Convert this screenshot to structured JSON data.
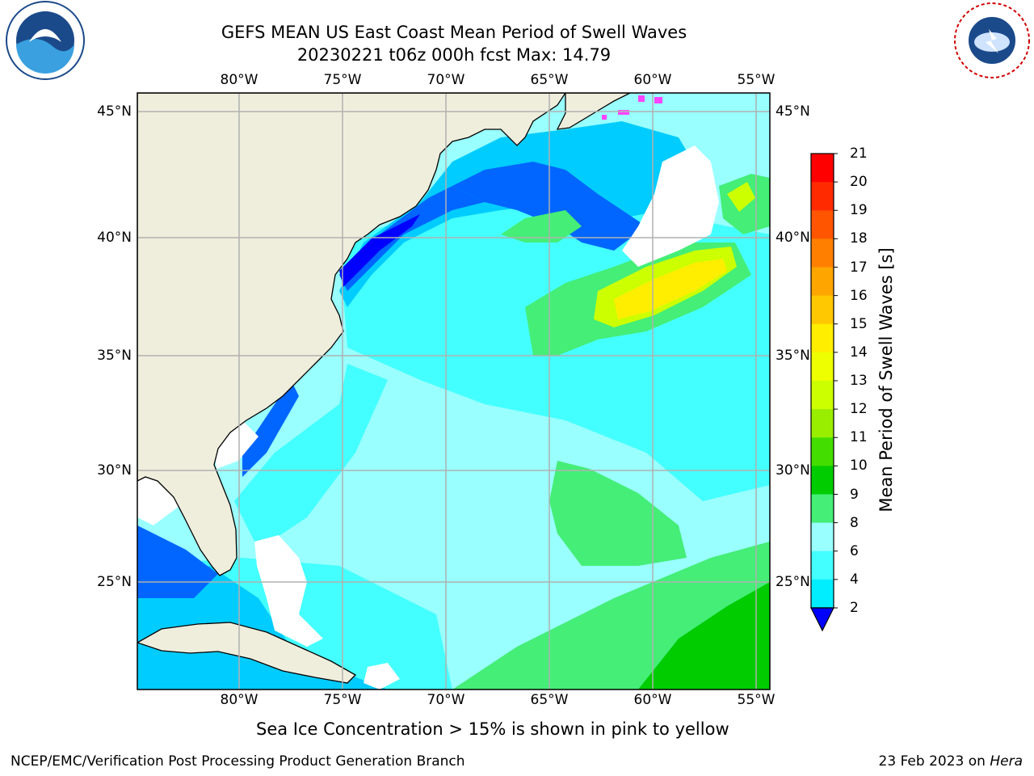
{
  "title": {
    "line1": "GEFS MEAN US East Coast Mean Period of Swell Waves",
    "line2": "20230221 t06z 000h fcst   Max: 14.79"
  },
  "logos": {
    "left": {
      "name": "noaa-logo",
      "text": "NOAA"
    },
    "right": {
      "name": "nws-logo",
      "text": "NATIONAL WEATHER SERVICE"
    }
  },
  "axes": {
    "lon_labels": [
      "80°W",
      "75°W",
      "70°W",
      "65°W",
      "60°W",
      "55°W"
    ],
    "lat_labels": [
      "45°N",
      "40°N",
      "35°N",
      "30°N",
      "25°N"
    ]
  },
  "colorbar": {
    "label": "Mean Period of Swell Waves [s]",
    "ticks": [
      "21",
      "20",
      "19",
      "18",
      "17",
      "16",
      "15",
      "14",
      "13",
      "12",
      "11",
      "10",
      "9",
      "8",
      "6",
      "4",
      "2"
    ],
    "colors": [
      "#ff0000",
      "#ff2a00",
      "#ff5500",
      "#ff8000",
      "#ffa500",
      "#ffc800",
      "#ffee00",
      "#eeff00",
      "#ccff00",
      "#99ee00",
      "#44dd00",
      "#00cc00",
      "#44ee77",
      "#99ffff",
      "#44ffff",
      "#00eeff",
      "#00aaff",
      "#0066ff"
    ],
    "extend_color": "#0000ff"
  },
  "palette": {
    "land": "#efeedd",
    "ocean_base": "#99ffff",
    "cyan": "#44ffff",
    "light_cyan": "#99ffff",
    "sky": "#00ccff",
    "blue": "#0066ff",
    "deep_blue": "#0000ff",
    "green": "#44ee77",
    "bright_green": "#00cc00",
    "yellow_green": "#ccff00",
    "yellow": "#ffee00",
    "magenta": "#ff44ff"
  },
  "caption": "Sea Ice Concentration > 15% is shown in pink to yellow",
  "footer": {
    "left": "NCEP/EMC/Verification Post Processing Product Generation Branch",
    "right_prefix": "23 Feb 2023 on ",
    "right_machine": "Hera"
  }
}
